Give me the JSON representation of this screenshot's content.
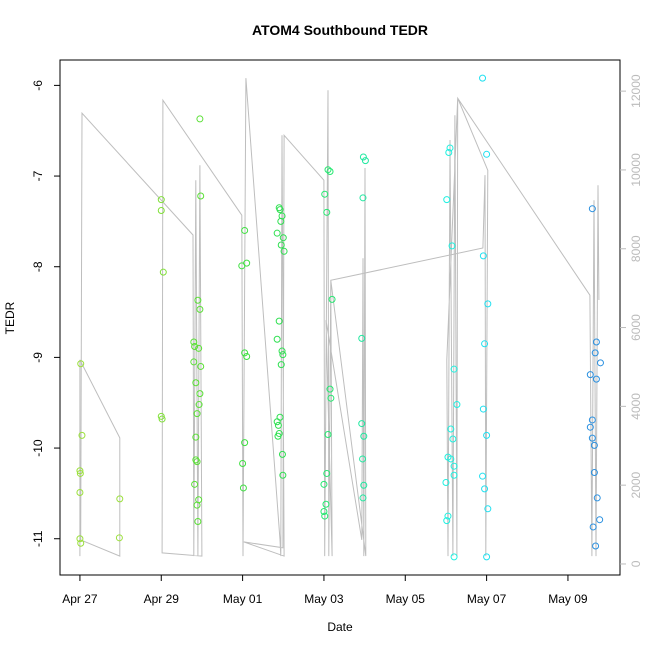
{
  "chart_data": {
    "type": "scatter",
    "title": "ATOM4 Southbound TEDR",
    "xlabel": "Date",
    "ylabel": "TEDR",
    "xlim": [
      -0.49,
      13.28
    ],
    "ylim": [
      -11.4,
      -5.72
    ],
    "y2lim": [
      -280,
      12790
    ],
    "xticks": [
      {
        "value": 0,
        "label": "Apr 27"
      },
      {
        "value": 2,
        "label": "Apr 29"
      },
      {
        "value": 4,
        "label": "May 01"
      },
      {
        "value": 6,
        "label": "May 03"
      },
      {
        "value": 8,
        "label": "May 05"
      },
      {
        "value": 10,
        "label": "May 07"
      },
      {
        "value": 12,
        "label": "May 09"
      }
    ],
    "yticks": [
      -11,
      -10,
      -9,
      -8,
      -7,
      -6
    ],
    "y2ticks": [
      0,
      2000,
      4000,
      6000,
      8000,
      10000,
      12000
    ],
    "series": [
      {
        "color": "#bebebe",
        "type": "line",
        "axis": "y2",
        "x": [
          0,
          0,
          0.98,
          0.98,
          0.02,
          0.05,
          2.78,
          2.8,
          2.85,
          2.9,
          2.95,
          3.0,
          2.02,
          2.04,
          3.98,
          4.01,
          4.08,
          4.92,
          4.94,
          4.97,
          5.02,
          4.03,
          4.99,
          5.02,
          6.0,
          6.02,
          6.1,
          6.12,
          6.17,
          6.2,
          6.05,
          6.93,
          6.96,
          6.98,
          7.01,
          7.03,
          6.17,
          9.91,
          9.96,
          9.98,
          10.03,
          9.29,
          9.27,
          9.22,
          9.17,
          9.1,
          9.05,
          9.02,
          9.29,
          12.54,
          12.59,
          12.64,
          12.69,
          12.74,
          12.76
        ],
        "values": [
          200,
          5180,
          3200,
          200,
          610,
          11440,
          8350,
          200,
          9740,
          200,
          10120,
          200,
          280,
          11770,
          8850,
          200,
          12330,
          610,
          200,
          10880,
          200,
          560,
          410,
          10880,
          9740,
          200,
          12020,
          200,
          7200,
          200,
          6190,
          610,
          7760,
          200,
          10050,
          200,
          7200,
          8020,
          9870,
          200,
          9990,
          11820,
          200,
          11390,
          200,
          10760,
          200,
          5180,
          11820,
          6820,
          200,
          9230,
          200,
          9610,
          6700
        ]
      },
      {
        "color": "#9be03c",
        "x": [
          0.02,
          0.05,
          0.0,
          0.01,
          0.0,
          0.0,
          0.02,
          0.98,
          0.97
        ],
        "values": [
          -9.07,
          -9.86,
          -10.25,
          -10.28,
          -10.49,
          -11.0,
          -11.05,
          -10.56,
          -10.99
        ]
      },
      {
        "color": "#80e038",
        "x": [
          2.0,
          2.0,
          2.05,
          2.0,
          2.02
        ],
        "values": [
          -7.26,
          -7.38,
          -8.06,
          -9.65,
          -9.68
        ]
      },
      {
        "color": "#5ae035",
        "x": [
          2.95,
          2.97,
          2.9,
          2.95,
          2.8,
          2.82,
          2.92,
          2.8,
          2.97,
          2.85,
          2.95,
          2.93,
          2.88,
          2.85,
          2.85,
          2.88,
          2.82,
          2.92,
          2.88,
          2.9
        ],
        "values": [
          -6.37,
          -7.22,
          -8.37,
          -8.47,
          -8.83,
          -8.88,
          -8.9,
          -9.05,
          -9.1,
          -9.28,
          -9.4,
          -9.52,
          -9.62,
          -9.88,
          -10.13,
          -10.15,
          -10.4,
          -10.57,
          -10.63,
          -10.81
        ]
      },
      {
        "color": "#3ee040",
        "x": [
          4.05,
          4.1,
          3.98,
          4.05,
          4.1,
          4.05,
          4.0,
          4.02
        ],
        "values": [
          -7.6,
          -7.96,
          -7.99,
          -8.95,
          -8.99,
          -9.94,
          -10.17,
          -10.44
        ]
      },
      {
        "color": "#2ee050",
        "x": [
          4.9,
          4.92,
          4.97,
          4.94,
          4.85,
          5.0,
          4.95,
          5.02,
          4.9,
          4.85,
          4.97,
          4.99,
          4.95,
          4.92,
          4.85,
          4.88,
          4.9,
          4.87,
          4.98,
          4.99
        ],
        "values": [
          -7.35,
          -7.37,
          -7.44,
          -7.5,
          -7.63,
          -7.68,
          -7.76,
          -7.83,
          -8.6,
          -8.8,
          -8.93,
          -8.97,
          -9.08,
          -9.66,
          -9.71,
          -9.75,
          -9.84,
          -9.87,
          -10.07,
          -10.3
        ]
      },
      {
        "color": "#24e870",
        "x": [
          6.1,
          6.15,
          6.02,
          6.07,
          6.2,
          6.15,
          6.17,
          6.1,
          6.07,
          6.0,
          6.05,
          6.0,
          6.02
        ],
        "values": [
          -6.93,
          -6.95,
          -7.2,
          -7.4,
          -8.36,
          -9.35,
          -9.45,
          -9.85,
          -10.28,
          -10.4,
          -10.62,
          -10.7,
          -10.75
        ]
      },
      {
        "color": "#20e8a0",
        "x": [
          6.97,
          7.02,
          6.96,
          6.93,
          6.93,
          6.98,
          6.95,
          6.98,
          6.96
        ],
        "values": [
          -6.79,
          -6.83,
          -7.24,
          -8.79,
          -9.73,
          -9.87,
          -10.12,
          -10.41,
          -10.55
        ]
      },
      {
        "color": "#20f0e0",
        "x": [
          9.1,
          9.07,
          9.02,
          9.15,
          9.2,
          9.27,
          9.12,
          9.17,
          9.05,
          9.12,
          9.2,
          9.2,
          9.0,
          9.05,
          9.02,
          9.2
        ],
        "values": [
          -6.69,
          -6.74,
          -7.26,
          -7.77,
          -9.13,
          -9.52,
          -9.79,
          -9.9,
          -10.1,
          -10.12,
          -10.2,
          -10.3,
          -10.38,
          -10.75,
          -10.8,
          -11.2
        ]
      },
      {
        "color": "#20e0f0",
        "x": [
          9.9,
          10.0,
          9.92,
          10.03,
          9.95,
          9.92,
          10.0,
          9.9,
          9.95,
          10.03,
          10.0
        ],
        "values": [
          -5.92,
          -6.76,
          -7.88,
          -8.41,
          -8.85,
          -9.57,
          -9.86,
          -10.31,
          -10.45,
          -10.67,
          -11.2
        ]
      },
      {
        "color": "#2a90e0",
        "x": [
          12.6,
          12.7,
          12.67,
          12.8,
          12.55,
          12.7,
          12.6,
          12.55,
          12.6,
          12.65,
          12.65,
          12.72,
          12.78,
          12.62,
          12.68
        ],
        "values": [
          -7.36,
          -8.83,
          -8.95,
          -9.06,
          -9.19,
          -9.24,
          -9.69,
          -9.77,
          -9.89,
          -9.97,
          -10.27,
          -10.55,
          -10.79,
          -10.87,
          -11.08
        ]
      }
    ]
  }
}
